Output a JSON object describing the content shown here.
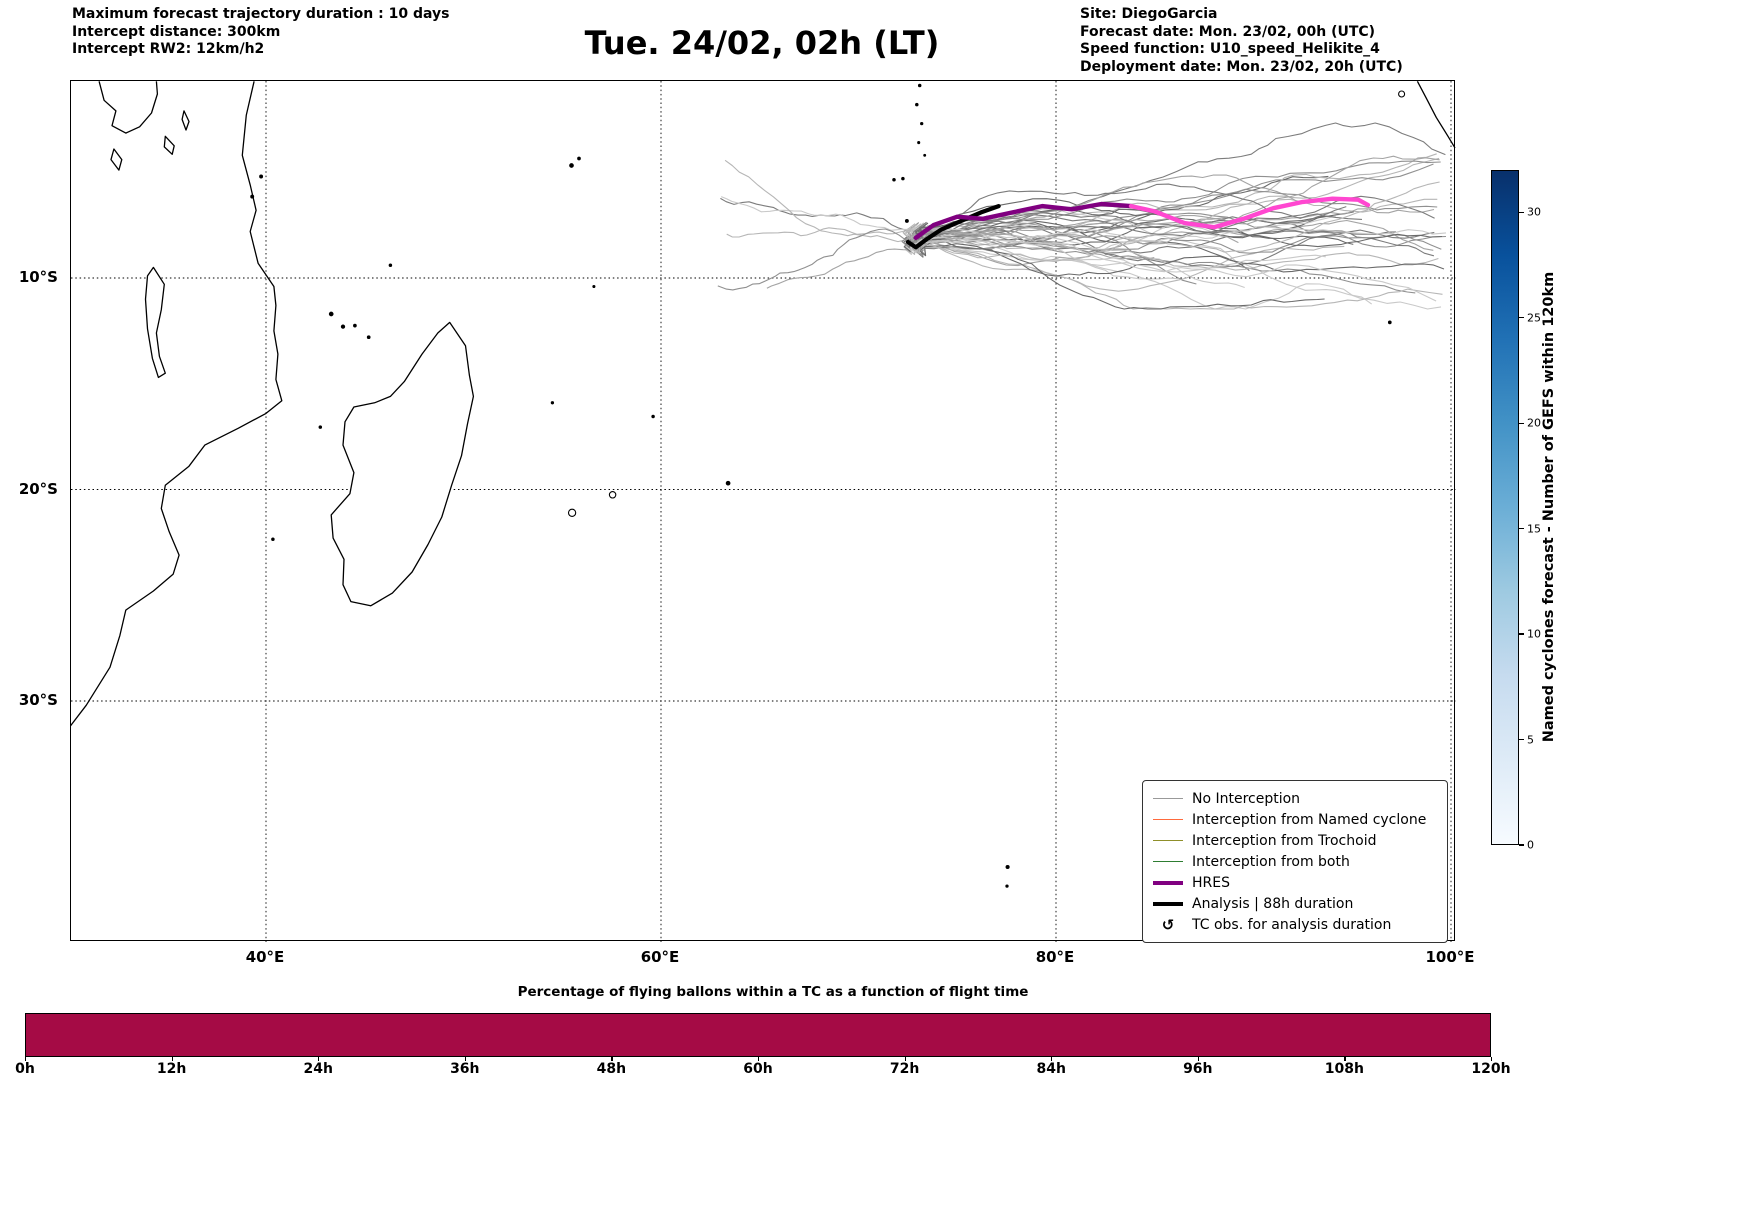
{
  "header": {
    "left_lines": [
      "Maximum forecast trajectory duration : 10 days",
      "Intercept distance: 300km",
      "Intercept RW2: 12km/h2"
    ],
    "title": "Tue. 24/02, 02h (LT)",
    "right_lines": [
      "Site: DiegoGarcia",
      "Forecast date: Mon. 23/02, 00h (UTC)",
      "Speed function: U10_speed_Helikite_4",
      "Deployment date: Mon. 23/02, 20h (UTC)"
    ]
  },
  "map": {
    "x_ticks": [
      {
        "label": "40°E",
        "lon": 40
      },
      {
        "label": "60°E",
        "lon": 60
      },
      {
        "label": "80°E",
        "lon": 80
      },
      {
        "label": "100°E",
        "lon": 100
      }
    ],
    "y_ticks": [
      {
        "label": "10°S",
        "lat_south": 10
      },
      {
        "label": "20°S",
        "lat_south": 20
      },
      {
        "label": "30°S",
        "lat_south": 30
      }
    ]
  },
  "legend": {
    "items": [
      {
        "label": "No Interception",
        "type": "line",
        "color": "#999999",
        "width": 1.5
      },
      {
        "label": "Interception from Named cyclone",
        "type": "line",
        "color": "#ff6a3d",
        "width": 1.5
      },
      {
        "label": "Interception from Trochoid",
        "type": "line",
        "color": "#8f8f2a",
        "width": 1.5
      },
      {
        "label": "Interception from both",
        "type": "line",
        "color": "#2e7d32",
        "width": 1.5
      },
      {
        "label": "HRES",
        "type": "line",
        "color": "#800080",
        "width": 4
      },
      {
        "label": "Analysis | 88h duration",
        "type": "line",
        "color": "#000000",
        "width": 4
      },
      {
        "label": "TC obs. for analysis duration",
        "type": "marker",
        "symbol": "↺",
        "color": "#000000"
      }
    ]
  },
  "chart_data": [
    {
      "type": "trajectory-map",
      "title": "Tue. 24/02, 02h (LT)",
      "region": {
        "lon_range": [
          30.1,
          100.3
        ],
        "lat_south_range": [
          0.7,
          41.4
        ],
        "gridlines_lon": [
          40,
          60,
          80,
          100
        ],
        "gridlines_lat_south": [
          10,
          20,
          30
        ]
      },
      "site": {
        "name": "DiegoGarcia",
        "lon": 72.4,
        "lat_south": 7.3
      },
      "colorbar": {
        "label": "Named cyclones forecast - Number of GEFS within 120km",
        "vmin": 0,
        "vmax": 32,
        "tick_values": [
          0,
          5,
          10,
          15,
          20,
          25,
          30
        ],
        "gradient_low_to_high": [
          "#f7fbff",
          "#deebf7",
          "#c6dbef",
          "#9ecae1",
          "#6baed6",
          "#4292c6",
          "#2171b5",
          "#08519c",
          "#08306b"
        ]
      },
      "ensemble": {
        "model": "GEFS",
        "label": "No Interception",
        "count": 50,
        "seed": 9,
        "start_lon": 72.9,
        "start_lat_south": 8.0,
        "west_fraction": 0.08,
        "line_colors": [
          "#c9c9c9",
          "#b6b6b6",
          "#a4a4a4",
          "#909090",
          "#7c7c7c",
          "#6a6a6a"
        ]
      },
      "analysis_track": {
        "label": "Analysis | 88h duration",
        "color": "#000000",
        "points": [
          [
            72.5,
            8.3
          ],
          [
            72.9,
            8.55
          ],
          [
            73.4,
            8.2
          ],
          [
            74.2,
            7.7
          ],
          [
            75.2,
            7.3
          ],
          [
            76.2,
            6.9
          ],
          [
            77.1,
            6.6
          ]
        ]
      },
      "hres_track": {
        "label": "HRES",
        "color": "#800080",
        "points": [
          [
            72.9,
            8.1
          ],
          [
            73.8,
            7.5
          ],
          [
            75.0,
            7.1
          ],
          [
            76.3,
            7.2
          ],
          [
            77.8,
            6.9
          ],
          [
            79.3,
            6.6
          ],
          [
            80.8,
            6.75
          ],
          [
            82.3,
            6.5
          ],
          [
            83.8,
            6.6
          ]
        ]
      },
      "hres_track_late": {
        "label": "HRES (later hours)",
        "color": "#ff47d0",
        "points": [
          [
            83.8,
            6.6
          ],
          [
            85.0,
            6.85
          ],
          [
            86.5,
            7.4
          ],
          [
            88.0,
            7.6
          ],
          [
            89.5,
            7.2
          ],
          [
            91.0,
            6.7
          ],
          [
            92.5,
            6.4
          ],
          [
            94.0,
            6.25
          ],
          [
            95.3,
            6.3
          ],
          [
            95.8,
            6.55
          ]
        ]
      },
      "coastlines": {
        "open": [
          [
            [
              39.4,
              0.7
            ],
            [
              39.0,
              2.3
            ],
            [
              38.8,
              4.2
            ],
            [
              39.2,
              5.6
            ],
            [
              39.5,
              6.8
            ],
            [
              39.2,
              7.8
            ],
            [
              39.6,
              9.3
            ],
            [
              40.4,
              10.4
            ],
            [
              40.5,
              11.3
            ],
            [
              40.4,
              12.5
            ],
            [
              40.6,
              13.6
            ],
            [
              40.5,
              14.8
            ],
            [
              40.8,
              15.8
            ],
            [
              40.0,
              16.4
            ],
            [
              38.6,
              17.1
            ],
            [
              36.9,
              17.9
            ],
            [
              36.1,
              18.9
            ],
            [
              34.9,
              19.8
            ],
            [
              34.7,
              20.9
            ],
            [
              35.1,
              22.0
            ],
            [
              35.6,
              23.1
            ],
            [
              35.3,
              24.0
            ],
            [
              34.3,
              24.8
            ],
            [
              32.9,
              25.7
            ],
            [
              32.6,
              26.9
            ],
            [
              32.1,
              28.4
            ],
            [
              30.9,
              30.2
            ],
            [
              30.0,
              31.3
            ]
          ],
          [
            [
              31.55,
              0.7
            ],
            [
              31.8,
              1.6
            ],
            [
              32.4,
              2.1
            ],
            [
              32.2,
              2.8
            ],
            [
              32.9,
              3.15
            ],
            [
              33.6,
              2.85
            ],
            [
              34.2,
              2.2
            ],
            [
              34.5,
              1.3
            ],
            [
              34.45,
              0.7
            ]
          ],
          [
            [
              98.3,
              0.7
            ],
            [
              98.75,
              1.5
            ],
            [
              99.25,
              2.4
            ],
            [
              99.85,
              3.3
            ],
            [
              100.2,
              3.85
            ]
          ]
        ],
        "closed": [
          [
            [
              49.3,
              12.1
            ],
            [
              50.1,
              13.2
            ],
            [
              50.3,
              14.6
            ],
            [
              50.5,
              15.6
            ],
            [
              50.2,
              16.9
            ],
            [
              49.9,
              18.4
            ],
            [
              49.4,
              19.8
            ],
            [
              48.9,
              21.3
            ],
            [
              48.2,
              22.6
            ],
            [
              47.4,
              23.9
            ],
            [
              46.4,
              24.9
            ],
            [
              45.3,
              25.5
            ],
            [
              44.3,
              25.3
            ],
            [
              43.9,
              24.5
            ],
            [
              43.95,
              23.3
            ],
            [
              43.4,
              22.3
            ],
            [
              43.3,
              21.2
            ],
            [
              44.25,
              20.2
            ],
            [
              44.45,
              19.2
            ],
            [
              43.9,
              17.9
            ],
            [
              44.0,
              16.8
            ],
            [
              44.45,
              16.1
            ],
            [
              45.5,
              15.9
            ],
            [
              46.3,
              15.6
            ],
            [
              47.0,
              14.9
            ],
            [
              47.9,
              13.6
            ],
            [
              48.7,
              12.6
            ]
          ],
          [
            [
              34.3,
              9.5
            ],
            [
              34.85,
              10.3
            ],
            [
              34.7,
              11.5
            ],
            [
              34.45,
              12.6
            ],
            [
              34.6,
              13.7
            ],
            [
              34.9,
              14.5
            ],
            [
              34.55,
              14.7
            ],
            [
              34.25,
              13.8
            ],
            [
              34.0,
              12.4
            ],
            [
              33.9,
              11.0
            ],
            [
              34.0,
              9.9
            ]
          ],
          [
            [
              34.9,
              3.3
            ],
            [
              35.35,
              3.75
            ],
            [
              35.25,
              4.15
            ],
            [
              34.85,
              3.8
            ]
          ],
          [
            [
              35.85,
              2.1
            ],
            [
              36.1,
              2.6
            ],
            [
              35.95,
              3.0
            ],
            [
              35.75,
              2.5
            ]
          ],
          [
            [
              32.3,
              3.9
            ],
            [
              32.7,
              4.4
            ],
            [
              32.55,
              4.9
            ],
            [
              32.15,
              4.4
            ]
          ]
        ]
      },
      "islands": [
        [
          39.75,
          5.2,
          1.4
        ],
        [
          39.3,
          6.15,
          1.4
        ],
        [
          43.3,
          11.7,
          1.8
        ],
        [
          43.9,
          12.3,
          1.6
        ],
        [
          44.5,
          12.25,
          1.3
        ],
        [
          45.2,
          12.8,
          1.3
        ],
        [
          46.3,
          9.4,
          1.2
        ],
        [
          40.35,
          22.35,
          1.2
        ],
        [
          42.75,
          17.05,
          1.2
        ],
        [
          55.47,
          4.68,
          1.8
        ],
        [
          55.85,
          4.35,
          1.3
        ],
        [
          54.5,
          15.9,
          1.1
        ],
        [
          56.6,
          10.4,
          1.0
        ],
        [
          59.6,
          16.55,
          1.2
        ],
        [
          57.55,
          20.25,
          3.2
        ],
        [
          55.5,
          21.1,
          3.6
        ],
        [
          63.4,
          19.7,
          1.8
        ],
        [
          71.8,
          5.35,
          1.2
        ],
        [
          72.25,
          5.3,
          1.2
        ],
        [
          72.45,
          7.3,
          1.4
        ],
        [
          73.1,
          0.9,
          1.2
        ],
        [
          72.95,
          1.8,
          1.2
        ],
        [
          73.2,
          2.7,
          1.1
        ],
        [
          73.05,
          3.6,
          1.0
        ],
        [
          73.35,
          4.2,
          0.9
        ],
        [
          77.55,
          37.85,
          1.5
        ],
        [
          77.52,
          38.75,
          1.1
        ],
        [
          96.9,
          12.1,
          1.3
        ],
        [
          97.5,
          1.3,
          3.0
        ]
      ]
    },
    {
      "type": "bar",
      "title": "Percentage of flying ballons within a TC as a function of flight time",
      "x_ticks": [
        {
          "label": "0h",
          "hours": 0
        },
        {
          "label": "12h",
          "hours": 12
        },
        {
          "label": "24h",
          "hours": 24
        },
        {
          "label": "36h",
          "hours": 36
        },
        {
          "label": "48h",
          "hours": 48
        },
        {
          "label": "60h",
          "hours": 60
        },
        {
          "label": "72h",
          "hours": 72
        },
        {
          "label": "84h",
          "hours": 84
        },
        {
          "label": "96h",
          "hours": 96
        },
        {
          "label": "108h",
          "hours": 108
        },
        {
          "label": "120h",
          "hours": 120
        }
      ],
      "xlim_hours": [
        0,
        120
      ],
      "ylim_percent": [
        0,
        100
      ],
      "bar_color": "#a50b45",
      "segments": [
        {
          "from_hours": 0,
          "to_hours": 120,
          "percent": 100
        }
      ]
    }
  ]
}
